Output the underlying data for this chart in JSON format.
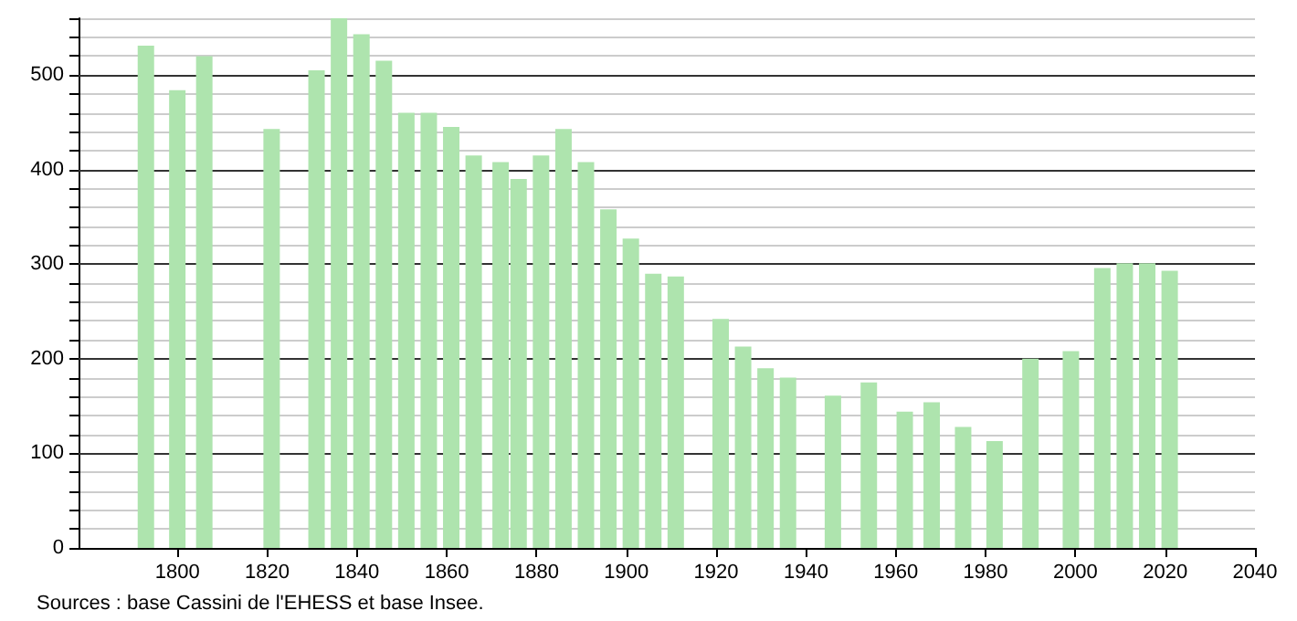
{
  "chart_data": {
    "type": "bar",
    "x": [
      1793,
      1800,
      1806,
      1821,
      1831,
      1836,
      1841,
      1846,
      1851,
      1856,
      1861,
      1866,
      1872,
      1876,
      1881,
      1886,
      1891,
      1896,
      1901,
      1906,
      1911,
      1921,
      1926,
      1931,
      1936,
      1946,
      1954,
      1962,
      1968,
      1975,
      1982,
      1990,
      1999,
      2006,
      2011,
      2016,
      2021
    ],
    "values": [
      531,
      484,
      520,
      443,
      505,
      560,
      543,
      515,
      460,
      460,
      445,
      415,
      408,
      390,
      415,
      443,
      408,
      358,
      327,
      290,
      287,
      242,
      213,
      190,
      180,
      161,
      175,
      144,
      154,
      128,
      113,
      200,
      208,
      296,
      301,
      301,
      293
    ],
    "color": "#aee4ae",
    "xlim": [
      1778,
      2040
    ],
    "xticks": [
      1800,
      1820,
      1840,
      1860,
      1880,
      1900,
      1920,
      1940,
      1960,
      1980,
      2000,
      2020,
      2040
    ],
    "ylim": [
      0,
      560
    ],
    "yticks": [
      0,
      {
        "value": 20,
        "label": null
      },
      {
        "value": 40,
        "label": null
      },
      {
        "value": 60,
        "label": null
      },
      {
        "value": 80,
        "label": null
      },
      100,
      {
        "value": 120,
        "label": null
      },
      {
        "value": 140,
        "label": null
      },
      {
        "value": 160,
        "label": null
      },
      {
        "value": 180,
        "label": null
      },
      200,
      {
        "value": 220,
        "label": null
      },
      {
        "value": 240,
        "label": null
      },
      {
        "value": 260,
        "label": null
      },
      {
        "value": 280,
        "label": null
      },
      300,
      {
        "value": 320,
        "label": null
      },
      {
        "value": 340,
        "label": null
      },
      {
        "value": 360,
        "label": null
      },
      {
        "value": 380,
        "label": null
      },
      400,
      {
        "value": 420,
        "label": null
      },
      {
        "value": 440,
        "label": null
      },
      {
        "value": 460,
        "label": null
      },
      {
        "value": 480,
        "label": null
      },
      500,
      {
        "value": 520,
        "label": null
      },
      {
        "value": 540,
        "label": null
      },
      {
        "value": 560,
        "label": null
      }
    ],
    "grid": "y",
    "annotations": [
      "Sources : base Cassini de l'EHESS et base Insee."
    ]
  }
}
